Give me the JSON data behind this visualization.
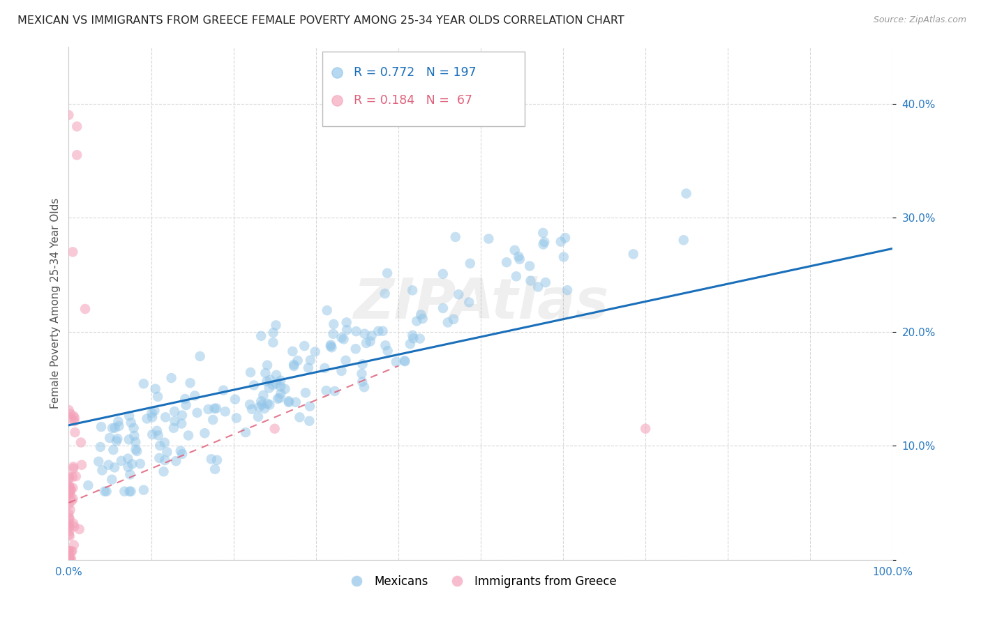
{
  "title": "MEXICAN VS IMMIGRANTS FROM GREECE FEMALE POVERTY AMONG 25-34 YEAR OLDS CORRELATION CHART",
  "source": "Source: ZipAtlas.com",
  "ylabel": "Female Poverty Among 25-34 Year Olds",
  "xlim": [
    0,
    1.0
  ],
  "ylim": [
    0,
    0.45
  ],
  "xticks": [
    0.0,
    0.1,
    0.2,
    0.3,
    0.4,
    0.5,
    0.6,
    0.7,
    0.8,
    0.9,
    1.0
  ],
  "yticks": [
    0.0,
    0.1,
    0.2,
    0.3,
    0.4
  ],
  "xtick_labels": [
    "0.0%",
    "",
    "",
    "",
    "",
    "",
    "",
    "",
    "",
    "",
    "100.0%"
  ],
  "ytick_labels": [
    "",
    "10.0%",
    "20.0%",
    "30.0%",
    "40.0%"
  ],
  "blue_R": 0.772,
  "blue_N": 197,
  "pink_R": 0.184,
  "pink_N": 67,
  "blue_color": "#90c4e8",
  "pink_color": "#f4a0b8",
  "blue_line_color": "#1a6fba",
  "pink_line_color": "#e0607a",
  "legend_blue_label": "Mexicans",
  "legend_pink_label": "Immigrants from Greece",
  "watermark": "ZIPAtlas",
  "title_fontsize": 11.5,
  "axis_label_fontsize": 11,
  "tick_fontsize": 11,
  "background_color": "#ffffff",
  "grid_color": "#d8d8d8",
  "blue_intercept": 0.118,
  "blue_slope": 0.155,
  "pink_intercept": 0.05,
  "pink_slope": 0.3,
  "seed": 12
}
